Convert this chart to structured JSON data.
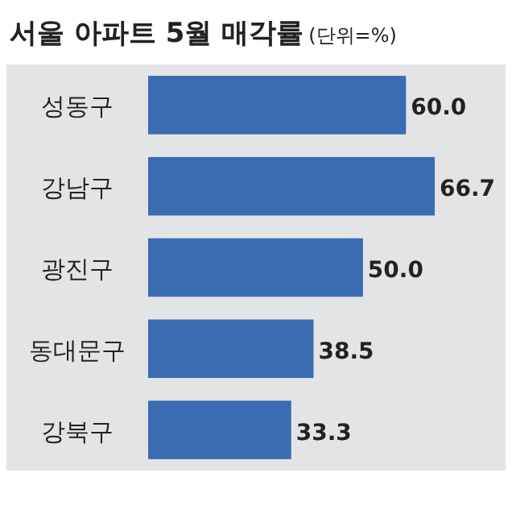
{
  "chart_data": {
    "type": "bar",
    "orientation": "horizontal",
    "title": "서울 아파트 5월 매각률",
    "subtitle": "(단위=%)",
    "categories": [
      "성동구",
      "강남구",
      "광진구",
      "동대문구",
      "강북구"
    ],
    "values": [
      60.0,
      66.7,
      50.0,
      38.5,
      33.3
    ],
    "value_labels": [
      "60.0",
      "66.7",
      "50.0",
      "38.5",
      "33.3"
    ],
    "color": "#3b6cb2"
  }
}
